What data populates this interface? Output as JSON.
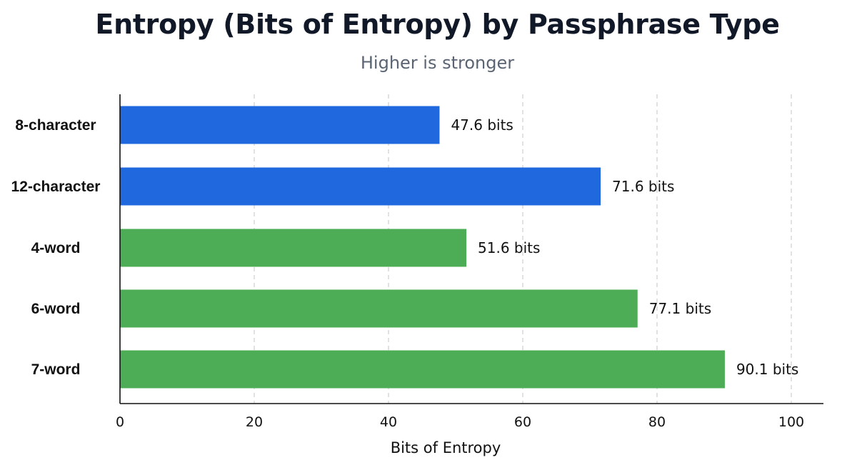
{
  "chart_data": {
    "type": "bar",
    "orientation": "horizontal",
    "title": "Entropy (Bits of Entropy) by Passphrase Type",
    "subtitle": "Higher is stronger",
    "xlabel": "Bits of Entropy",
    "ylabel": "",
    "xlim": [
      0,
      105
    ],
    "xticks": [
      0,
      20,
      40,
      60,
      80,
      100
    ],
    "grid": "vertical dashed",
    "categories": [
      "8-character",
      "12-character",
      "4-word",
      "6-word",
      "7-word"
    ],
    "values": [
      47.6,
      71.6,
      51.6,
      77.1,
      90.1
    ],
    "value_labels": [
      "47.6 bits",
      "71.6 bits",
      "51.6 bits",
      "77.1 bits",
      "90.1 bits"
    ],
    "colors": [
      "#1f68de",
      "#1f68de",
      "#4cad56",
      "#4cad56",
      "#4cad56"
    ]
  }
}
